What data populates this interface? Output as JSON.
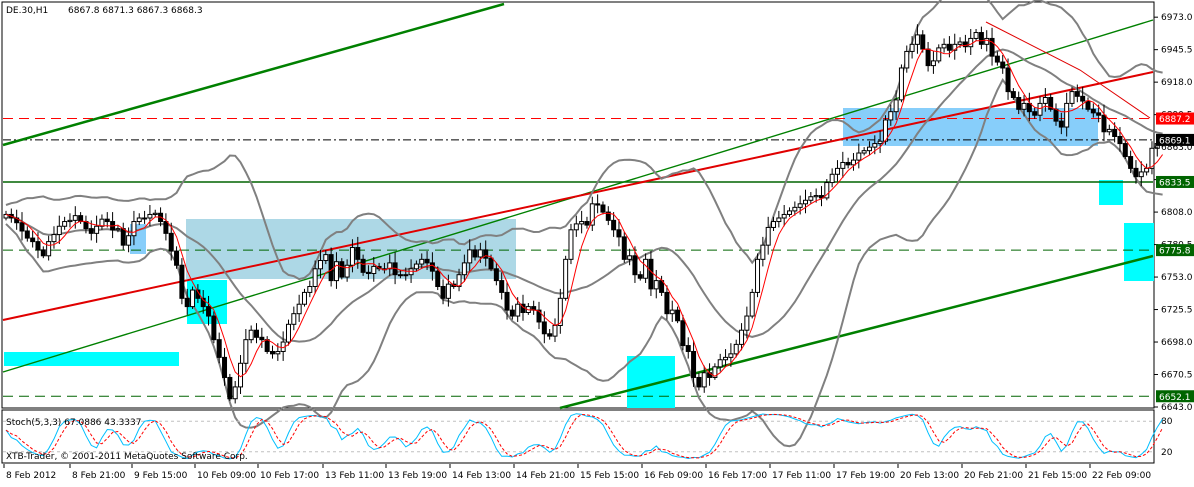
{
  "header": {
    "symbol": "DE.30,H1",
    "ohlc": "6867.8 6871.3 6867.3 6868.3"
  },
  "footer": {
    "copyright": "XTB-Trader, © 2001-2011 MetaQuotes Software Corp."
  },
  "chart_data": [
    {
      "type": "candlestick",
      "title": "DE.30,H1",
      "ylim": [
        6643.0,
        6985.0
      ],
      "y_ticks": [
        "6973.0",
        "6945.5",
        "6918.0",
        "6890.5",
        "6863.0",
        "6835.5",
        "6808.0",
        "6780.5",
        "6753.0",
        "6725.5",
        "6698.0",
        "6670.5",
        "6643.0"
      ],
      "x_ticks": [
        "8 Feb 2012",
        "8 Feb 21:00",
        "9 Feb 15:00",
        "10 Feb 09:00",
        "10 Feb 17:00",
        "13 Feb 11:00",
        "13 Feb 19:00",
        "14 Feb 13:00",
        "14 Feb 21:00",
        "15 Feb 15:00",
        "16 Feb 09:00",
        "16 Feb 17:00",
        "17 Feb 11:00",
        "17 Feb 19:00",
        "20 Feb 13:00",
        "20 Feb 21:00",
        "21 Feb 15:00",
        "22 Feb 09:00"
      ],
      "closes": [
        6806,
        6803,
        6799,
        6792,
        6786,
        6783,
        6776,
        6771,
        6783,
        6789,
        6796,
        6800,
        6801,
        6805,
        6800,
        6794,
        6790,
        6796,
        6802,
        6800,
        6793,
        6794,
        6780,
        6788,
        6800,
        6803,
        6803,
        6806,
        6807,
        6800,
        6790,
        6775,
        6763,
        6735,
        6728,
        6742,
        6735,
        6728,
        6720,
        6700,
        6685,
        6668,
        6650,
        6660,
        6680,
        6700,
        6708,
        6702,
        6700,
        6690,
        6688,
        6690,
        6698,
        6713,
        6722,
        6730,
        6740,
        6745,
        6760,
        6767,
        6772,
        6750,
        6766,
        6753,
        6763,
        6778,
        6768,
        6757,
        6756,
        6762,
        6760,
        6760,
        6765,
        6755,
        6755,
        6755,
        6760,
        6764,
        6768,
        6765,
        6758,
        6745,
        6735,
        6747,
        6745,
        6755,
        6765,
        6776,
        6770,
        6776,
        6769,
        6760,
        6750,
        6740,
        6725,
        6720,
        6730,
        6723,
        6728,
        6725,
        6715,
        6705,
        6703,
        6712,
        6735,
        6768,
        6793,
        6798,
        6800,
        6797,
        6815,
        6814,
        6808,
        6801,
        6793,
        6787,
        6768,
        6771,
        6755,
        6752,
        6768,
        6743,
        6750,
        6740,
        6722,
        6725,
        6716,
        6695,
        6690,
        6668,
        6660,
        6672,
        6668,
        6677,
        6683,
        6685,
        6688,
        6696,
        6708,
        6720,
        6740,
        6768,
        6780,
        6795,
        6800,
        6803,
        6806,
        6809,
        6812,
        6815,
        6818,
        6821,
        6822,
        6820,
        6833,
        6840,
        6845,
        6850,
        6848,
        6852,
        6858,
        6860,
        6863,
        6866,
        6868,
        6886,
        6893,
        6903,
        6930,
        6944,
        6950,
        6958,
        6946,
        6932,
        6936,
        6947,
        6950,
        6945,
        6950,
        6952,
        6948,
        6955,
        6960,
        6950,
        6955,
        6940,
        6935,
        6930,
        6910,
        6905,
        6895,
        6900,
        6893,
        6890,
        6900,
        6905,
        6895,
        6885,
        6880,
        6900,
        6910,
        6906,
        6902,
        6895,
        6892,
        6890,
        6876,
        6878,
        6872,
        6866,
        6855,
        6845,
        6838,
        6842,
        6845,
        6862,
        6866,
        6868.3
      ]
    },
    {
      "type": "line",
      "title": "Stoch(5,3,3)",
      "values_text": "67.0886 43.3337",
      "ylim": [
        0,
        100
      ],
      "levels": [
        "80",
        "20"
      ]
    }
  ],
  "price_labels": [
    {
      "text": "6887.2",
      "price": 6887.2,
      "color": "#ff0000"
    },
    {
      "text": "6869.1",
      "price": 6869.1,
      "color": "#000000"
    },
    {
      "text": "6833.5",
      "price": 6833.5,
      "color": "#006400"
    },
    {
      "text": "6775.8",
      "price": 6775.8,
      "color": "#006400"
    },
    {
      "text": "6652.1",
      "price": 6652.1,
      "color": "#006400"
    }
  ],
  "colors": {
    "bull_candle": "#ffffff",
    "bear_candle": "#000000",
    "ma": "#ff0000",
    "bands": "#808080",
    "channel": "#008000",
    "zone_light": "#add8e6",
    "zone_sky": "#87cefa",
    "zone_cyan": "#00ffff",
    "stoch_main": "#00bfff",
    "stoch_signal": "#ff0000"
  }
}
